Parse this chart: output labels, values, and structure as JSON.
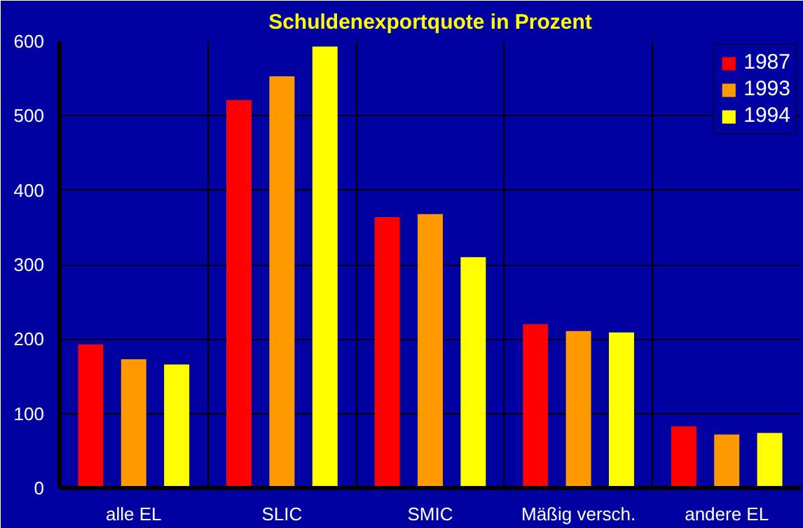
{
  "chart_data": {
    "type": "bar",
    "title": "Schuldenexportquote in Prozent",
    "categories": [
      "alle EL",
      "SLIC",
      "SMIC",
      "Mäßig versch.",
      "andere EL"
    ],
    "series": [
      {
        "name": "1987",
        "color": "#ff0000",
        "values": [
          193,
          521,
          364,
          220,
          83
        ]
      },
      {
        "name": "1993",
        "color": "#ff9900",
        "values": [
          173,
          553,
          368,
          211,
          72
        ]
      },
      {
        "name": "1994",
        "color": "#ffff00",
        "values": [
          166,
          593,
          310,
          209,
          74
        ]
      }
    ],
    "ylim": [
      0,
      600
    ],
    "yticks": [
      0,
      100,
      200,
      300,
      400,
      500,
      600
    ],
    "grid": true,
    "legend": "top right"
  }
}
